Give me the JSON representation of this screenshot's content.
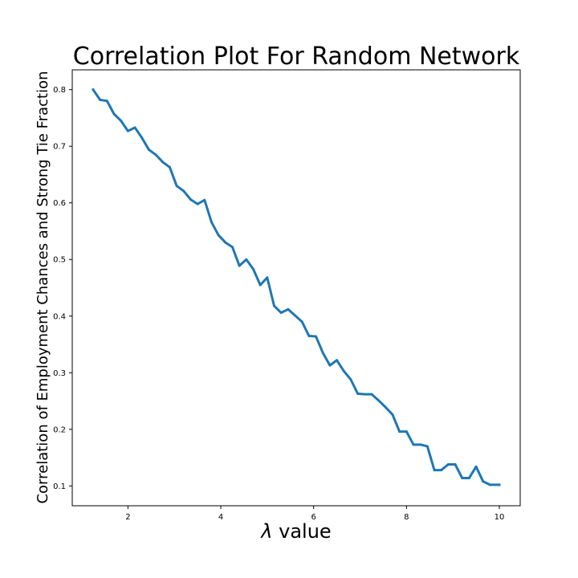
{
  "chart_data": {
    "type": "line",
    "title": "Correlation Plot For Random Network",
    "xlabel_symbol": "λ",
    "xlabel_text": " value",
    "ylabel": "Correlation of Employment Chances and Strong Tie Fraction",
    "xlim": [
      0.8,
      10.45
    ],
    "ylim": [
      0.065,
      0.835
    ],
    "xticks": [
      2,
      4,
      6,
      8,
      10
    ],
    "yticks": [
      0.1,
      0.2,
      0.3,
      0.4,
      0.5,
      0.6,
      0.7,
      0.8
    ],
    "grid": false,
    "series": [
      {
        "color": "#1f77b4",
        "x": [
          1.25,
          1.4,
          1.55,
          1.7,
          1.85,
          2.0,
          2.15,
          2.3,
          2.45,
          2.6,
          2.75,
          2.9,
          3.05,
          3.2,
          3.35,
          3.5,
          3.65,
          3.8,
          3.95,
          4.1,
          4.25,
          4.4,
          4.55,
          4.7,
          4.85,
          5.0,
          5.15,
          5.3,
          5.45,
          5.6,
          5.75,
          5.9,
          6.05,
          6.2,
          6.35,
          6.5,
          6.65,
          6.8,
          6.95,
          7.1,
          7.25,
          7.4,
          7.55,
          7.7,
          7.85,
          8.0,
          8.15,
          8.3,
          8.45,
          8.6,
          8.75,
          8.9,
          9.05,
          9.2,
          9.35,
          9.5,
          9.65,
          9.8,
          10.0
        ],
        "y": [
          0.8,
          0.782,
          0.78,
          0.757,
          0.745,
          0.727,
          0.733,
          0.715,
          0.694,
          0.685,
          0.672,
          0.663,
          0.63,
          0.621,
          0.606,
          0.598,
          0.605,
          0.566,
          0.543,
          0.53,
          0.522,
          0.489,
          0.5,
          0.483,
          0.455,
          0.468,
          0.418,
          0.406,
          0.412,
          0.401,
          0.39,
          0.365,
          0.364,
          0.335,
          0.313,
          0.322,
          0.303,
          0.288,
          0.263,
          0.262,
          0.262,
          0.251,
          0.239,
          0.226,
          0.196,
          0.196,
          0.173,
          0.173,
          0.17,
          0.128,
          0.128,
          0.138,
          0.138,
          0.114,
          0.114,
          0.134,
          0.108,
          0.102,
          0.102
        ]
      }
    ]
  }
}
